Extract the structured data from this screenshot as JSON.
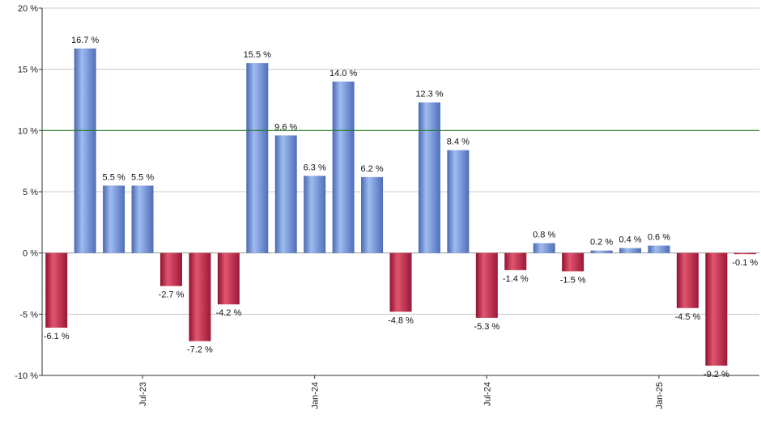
{
  "chart_data": {
    "type": "bar",
    "title": "",
    "xlabel": "",
    "ylabel": "",
    "ylim": [
      -10,
      20
    ],
    "yticks": [
      -10,
      -5,
      0,
      5,
      10,
      15,
      20
    ],
    "ytick_labels": [
      "-10 %",
      "-5 %",
      "0 %",
      "5 %",
      "10 %",
      "15 %",
      "20 %"
    ],
    "values": [
      -6.1,
      16.7,
      5.5,
      5.5,
      -2.7,
      -7.2,
      -4.2,
      15.5,
      9.6,
      6.3,
      14.0,
      6.2,
      -4.8,
      12.3,
      8.4,
      -5.3,
      -1.4,
      0.8,
      -1.5,
      0.2,
      0.4,
      0.6,
      -4.5,
      -9.2,
      -0.1
    ],
    "value_labels": [
      "-6.1 %",
      "16.7 %",
      "5.5 %",
      "5.5 %",
      "-2.7 %",
      "-7.2 %",
      "-4.2 %",
      "15.5 %",
      "9.6 %",
      "6.3 %",
      "14.0 %",
      "6.2 %",
      "-4.8 %",
      "12.3 %",
      "8.4 %",
      "-5.3 %",
      "-1.4 %",
      "0.8 %",
      "-1.5 %",
      "0.2 %",
      "0.4 %",
      "0.6 %",
      "-4.5 %",
      "-9.2 %",
      "-0.1 %"
    ],
    "xtick_labels": [
      {
        "index": 3,
        "label": "Jul-23"
      },
      {
        "index": 9,
        "label": "Jan-24"
      },
      {
        "index": 15,
        "label": "Jul-24"
      },
      {
        "index": 21,
        "label": "Jan-25"
      }
    ],
    "reference_line": 10,
    "grid": true,
    "colors": {
      "positive": "#6f93dd",
      "negative": "#c8244a",
      "reference_line": "#1f7a1f",
      "grid": "#cccccc",
      "axis": "#333333"
    }
  }
}
